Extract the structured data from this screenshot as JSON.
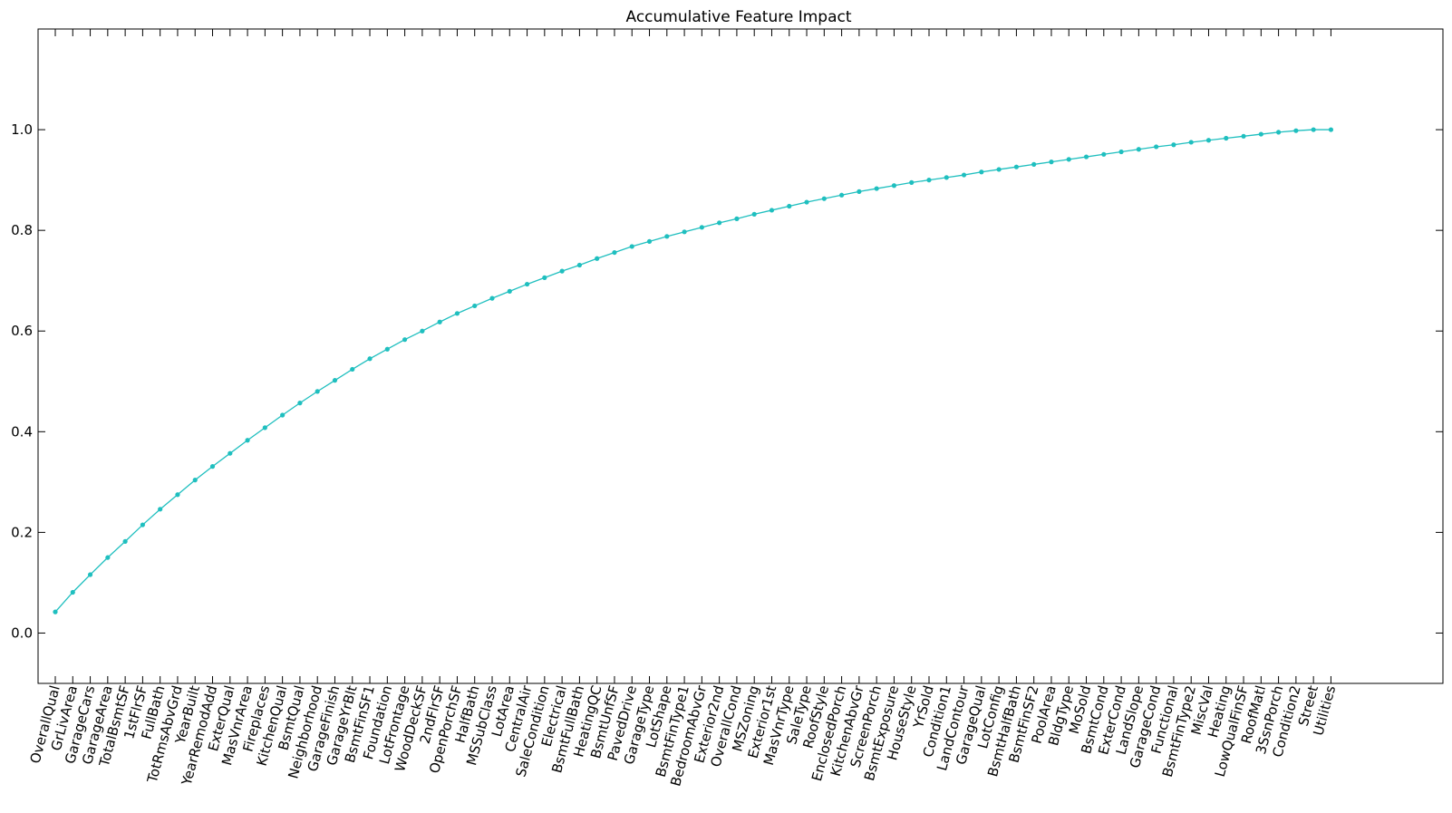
{
  "chart_data": {
    "type": "line",
    "title": "Accumulative Feature Impact",
    "xlabel": "",
    "ylabel": "",
    "ylim": [
      -0.1,
      1.2
    ],
    "yticks": [
      0.0,
      0.2,
      0.4,
      0.6,
      0.8,
      1.0
    ],
    "ytick_labels": [
      "0.0",
      "0.2",
      "0.4",
      "0.6",
      "0.8",
      "1.0"
    ],
    "grid": false,
    "legend": "none",
    "colors": {
      "line": "#1fbfbf",
      "marker": "#1fbfbf",
      "axes": "#000000",
      "background": "#ffffff"
    },
    "categories": [
      "OverallQual",
      "GrLivArea",
      "GarageCars",
      "GarageArea",
      "TotalBsmtSF",
      "1stFlrSF",
      "FullBath",
      "TotRmsAbvGrd",
      "YearBuilt",
      "YearRemodAdd",
      "ExterQual",
      "MasVnrArea",
      "Fireplaces",
      "KitchenQual",
      "BsmtQual",
      "Neighborhood",
      "GarageFinish",
      "GarageYrBlt",
      "BsmtFinSF1",
      "Foundation",
      "LotFrontage",
      "WoodDeckSF",
      "2ndFlrSF",
      "OpenPorchSF",
      "HalfBath",
      "MSSubClass",
      "LotArea",
      "CentralAir",
      "SaleCondition",
      "Electrical",
      "BsmtFullBath",
      "HeatingQC",
      "BsmtUnfSF",
      "PavedDrive",
      "GarageType",
      "LotShape",
      "BsmtFinType1",
      "BedroomAbvGr",
      "Exterior2nd",
      "OverallCond",
      "MSZoning",
      "Exterior1st",
      "MasVnrType",
      "SaleType",
      "RoofStyle",
      "EnclosedPorch",
      "KitchenAbvGr",
      "ScreenPorch",
      "BsmtExposure",
      "HouseStyle",
      "YrSold",
      "Condition1",
      "LandContour",
      "GarageQual",
      "LotConfig",
      "BsmtHalfBath",
      "BsmtFinSF2",
      "PoolArea",
      "BldgType",
      "MoSold",
      "BsmtCond",
      "ExterCond",
      "LandSlope",
      "GarageCond",
      "Functional",
      "BsmtFinType2",
      "MiscVal",
      "Heating",
      "LowQualFinSF",
      "RoofMatl",
      "3SsnPorch",
      "Condition2",
      "Street",
      "Utilities"
    ],
    "series": [
      {
        "values": [
          0.042,
          0.081,
          0.116,
          0.15,
          0.182,
          0.215,
          0.246,
          0.275,
          0.304,
          0.331,
          0.357,
          0.383,
          0.408,
          0.433,
          0.457,
          0.48,
          0.502,
          0.524,
          0.545,
          0.564,
          0.583,
          0.6,
          0.618,
          0.635,
          0.65,
          0.665,
          0.679,
          0.693,
          0.706,
          0.719,
          0.731,
          0.744,
          0.756,
          0.768,
          0.778,
          0.788,
          0.797,
          0.806,
          0.815,
          0.823,
          0.832,
          0.84,
          0.848,
          0.856,
          0.863,
          0.87,
          0.877,
          0.883,
          0.889,
          0.895,
          0.9,
          0.905,
          0.91,
          0.916,
          0.921,
          0.926,
          0.931,
          0.936,
          0.941,
          0.946,
          0.951,
          0.956,
          0.961,
          0.966,
          0.97,
          0.975,
          0.979,
          0.983,
          0.987,
          0.991,
          0.995,
          0.998,
          1.0,
          1.0
        ]
      }
    ]
  }
}
